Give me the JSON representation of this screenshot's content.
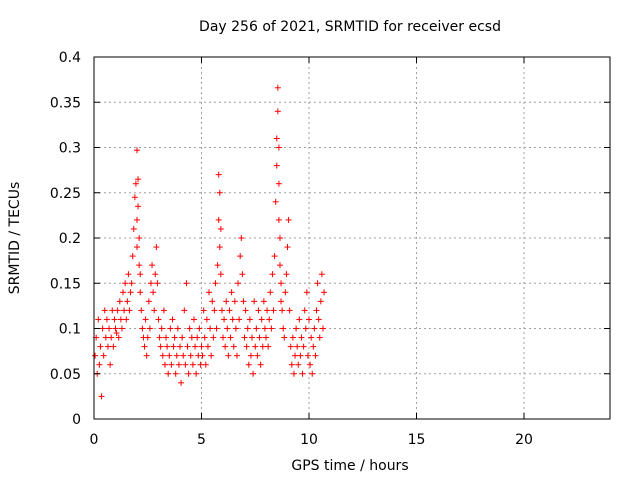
{
  "chart_data": {
    "type": "scatter",
    "title": "Day 256 of 2021, SRMTID for receiver ecsd",
    "xlabel": "GPS time / hours",
    "ylabel": "SRMTID / TECUs",
    "xlim": [
      0,
      24
    ],
    "ylim": [
      0,
      0.4
    ],
    "xticks": [
      0,
      5,
      10,
      15,
      20
    ],
    "xtick_labels": [
      "0",
      "5",
      "10",
      "15",
      "20"
    ],
    "yticks": [
      0,
      0.05,
      0.1,
      0.15,
      0.2,
      0.25,
      0.3,
      0.35,
      0.4
    ],
    "ytick_labels": [
      "0",
      "0.05",
      "0.1",
      "0.15",
      "0.2",
      "0.25",
      "0.3",
      "0.35",
      "0.4"
    ],
    "grid": true,
    "marker": "+",
    "color": "#ff0000",
    "series": [
      {
        "name": "SRMTID",
        "x": [
          0.05,
          0.1,
          0.15,
          0.2,
          0.25,
          0.3,
          0.35,
          0.4,
          0.45,
          0.5,
          0.55,
          0.6,
          0.65,
          0.7,
          0.75,
          0.8,
          0.85,
          0.9,
          0.95,
          1.0,
          1.05,
          1.1,
          1.15,
          1.2,
          1.25,
          1.3,
          1.35,
          1.4,
          1.45,
          1.5,
          1.55,
          1.6,
          1.65,
          1.7,
          1.75,
          1.8,
          1.85,
          1.9,
          1.95,
          2.0,
          2.0,
          2.0,
          2.05,
          2.05,
          2.1,
          2.1,
          2.15,
          2.15,
          2.2,
          2.25,
          2.3,
          2.35,
          2.4,
          2.45,
          2.5,
          2.55,
          2.6,
          2.65,
          2.7,
          2.75,
          2.8,
          2.85,
          2.9,
          2.95,
          3.0,
          3.05,
          3.1,
          3.15,
          3.2,
          3.25,
          3.3,
          3.35,
          3.4,
          3.45,
          3.5,
          3.55,
          3.6,
          3.65,
          3.7,
          3.75,
          3.8,
          3.85,
          3.9,
          3.95,
          4.0,
          4.05,
          4.1,
          4.15,
          4.2,
          4.25,
          4.3,
          4.35,
          4.4,
          4.45,
          4.5,
          4.55,
          4.6,
          4.65,
          4.7,
          4.75,
          4.8,
          4.85,
          4.9,
          4.95,
          5.0,
          5.05,
          5.1,
          5.15,
          5.2,
          5.25,
          5.3,
          5.35,
          5.4,
          5.45,
          5.5,
          5.55,
          5.6,
          5.65,
          5.7,
          5.75,
          5.8,
          5.8,
          5.85,
          5.85,
          5.9,
          5.9,
          5.95,
          6.0,
          6.05,
          6.1,
          6.15,
          6.2,
          6.25,
          6.3,
          6.35,
          6.4,
          6.45,
          6.5,
          6.55,
          6.6,
          6.65,
          6.7,
          6.75,
          6.8,
          6.85,
          6.9,
          6.95,
          7.0,
          7.05,
          7.1,
          7.15,
          7.2,
          7.25,
          7.3,
          7.35,
          7.4,
          7.45,
          7.5,
          7.55,
          7.6,
          7.65,
          7.7,
          7.75,
          7.8,
          7.85,
          7.9,
          7.95,
          8.0,
          8.05,
          8.1,
          8.15,
          8.2,
          8.25,
          8.3,
          8.35,
          8.4,
          8.45,
          8.5,
          8.5,
          8.55,
          8.55,
          8.6,
          8.6,
          8.6,
          8.65,
          8.65,
          8.7,
          8.7,
          8.75,
          8.8,
          8.85,
          8.9,
          8.95,
          9.0,
          9.05,
          9.1,
          9.15,
          9.2,
          9.25,
          9.3,
          9.35,
          9.4,
          9.45,
          9.5,
          9.55,
          9.6,
          9.65,
          9.7,
          9.75,
          9.8,
          9.85,
          9.9,
          9.95,
          10.0,
          10.05,
          10.1,
          10.15,
          10.2,
          10.25,
          10.3,
          10.35,
          10.4,
          10.45,
          10.5,
          10.55,
          10.6,
          10.65,
          10.7
        ],
        "y": [
          0.07,
          0.09,
          0.05,
          0.11,
          0.06,
          0.08,
          0.025,
          0.1,
          0.07,
          0.12,
          0.09,
          0.11,
          0.08,
          0.1,
          0.06,
          0.09,
          0.12,
          0.08,
          0.11,
          0.1,
          0.095,
          0.12,
          0.09,
          0.13,
          0.11,
          0.1,
          0.14,
          0.12,
          0.15,
          0.11,
          0.13,
          0.16,
          0.12,
          0.14,
          0.15,
          0.18,
          0.21,
          0.245,
          0.26,
          0.297,
          0.22,
          0.19,
          0.265,
          0.235,
          0.2,
          0.17,
          0.16,
          0.14,
          0.12,
          0.1,
          0.09,
          0.08,
          0.11,
          0.07,
          0.09,
          0.13,
          0.1,
          0.15,
          0.17,
          0.14,
          0.12,
          0.16,
          0.19,
          0.15,
          0.11,
          0.09,
          0.08,
          0.1,
          0.07,
          0.12,
          0.06,
          0.09,
          0.08,
          0.05,
          0.07,
          0.1,
          0.06,
          0.11,
          0.08,
          0.09,
          0.05,
          0.07,
          0.1,
          0.06,
          0.08,
          0.04,
          0.09,
          0.07,
          0.12,
          0.06,
          0.15,
          0.08,
          0.05,
          0.1,
          0.07,
          0.09,
          0.06,
          0.11,
          0.08,
          0.05,
          0.09,
          0.07,
          0.1,
          0.06,
          0.08,
          0.07,
          0.12,
          0.09,
          0.06,
          0.11,
          0.08,
          0.14,
          0.1,
          0.07,
          0.13,
          0.09,
          0.12,
          0.15,
          0.1,
          0.17,
          0.22,
          0.27,
          0.19,
          0.25,
          0.21,
          0.16,
          0.12,
          0.09,
          0.11,
          0.08,
          0.13,
          0.1,
          0.07,
          0.12,
          0.09,
          0.14,
          0.11,
          0.08,
          0.13,
          0.1,
          0.07,
          0.15,
          0.11,
          0.18,
          0.2,
          0.16,
          0.13,
          0.09,
          0.12,
          0.08,
          0.1,
          0.06,
          0.11,
          0.07,
          0.09,
          0.05,
          0.13,
          0.08,
          0.1,
          0.07,
          0.12,
          0.09,
          0.06,
          0.11,
          0.08,
          0.13,
          0.1,
          0.09,
          0.12,
          0.08,
          0.11,
          0.14,
          0.1,
          0.16,
          0.12,
          0.18,
          0.24,
          0.28,
          0.31,
          0.366,
          0.34,
          0.3,
          0.26,
          0.22,
          0.2,
          0.17,
          0.15,
          0.13,
          0.12,
          0.1,
          0.09,
          0.14,
          0.16,
          0.19,
          0.22,
          0.12,
          0.08,
          0.06,
          0.09,
          0.05,
          0.07,
          0.1,
          0.08,
          0.06,
          0.11,
          0.07,
          0.09,
          0.05,
          0.08,
          0.12,
          0.1,
          0.14,
          0.07,
          0.11,
          0.06,
          0.09,
          0.05,
          0.08,
          0.1,
          0.07,
          0.12,
          0.15,
          0.11,
          0.09,
          0.13,
          0.16,
          0.1,
          0.14
        ]
      }
    ]
  }
}
